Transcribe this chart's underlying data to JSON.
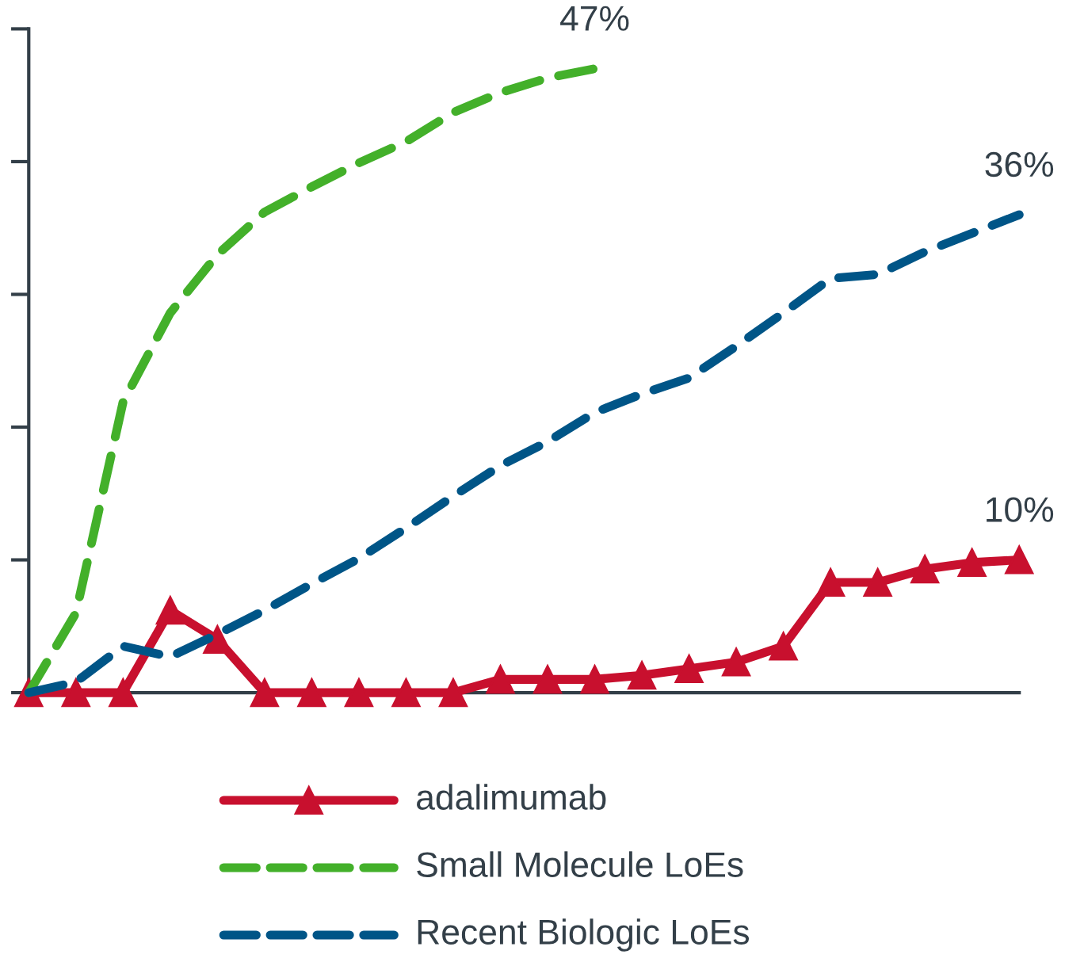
{
  "chart_data": {
    "type": "line",
    "categories": [
      null,
      null,
      null,
      null,
      null,
      null,
      null,
      null,
      null,
      null,
      null,
      null,
      null,
      null,
      null,
      null,
      null,
      null,
      null,
      null,
      null,
      null
    ],
    "series": [
      {
        "name": "adalimumab",
        "color": "#c8102e",
        "marker": "triangle",
        "line_style": "solid",
        "values": [
          0,
          0,
          0,
          6.2,
          4.0,
          0,
          0,
          0,
          0,
          0,
          1.0,
          1.0,
          1.0,
          1.3,
          1.8,
          2.3,
          3.5,
          8.3,
          8.3,
          9.3,
          9.8,
          10
        ],
        "value_labels": [
          null,
          null,
          null,
          null,
          null,
          null,
          null,
          null,
          null,
          null,
          null,
          null,
          null,
          null,
          null,
          null,
          null,
          null,
          null,
          null,
          null,
          "10%"
        ]
      },
      {
        "name": "Small Molecule LoEs",
        "color": "#43b02a",
        "marker": "none",
        "line_style": "dashed",
        "values": [
          0,
          6.0,
          21.9,
          28.6,
          33,
          36.2,
          38.1,
          39.9,
          41.5,
          43.7,
          45.2,
          46.3,
          47,
          null,
          null,
          null,
          null,
          null,
          null,
          null,
          null,
          null
        ],
        "value_labels": [
          null,
          null,
          null,
          null,
          null,
          null,
          null,
          null,
          null,
          null,
          null,
          null,
          "47%",
          null,
          null,
          null,
          null,
          null,
          null,
          null,
          null,
          null
        ]
      },
      {
        "name": "Recent Biologic LoEs",
        "color": "#005587",
        "marker": "none",
        "line_style": "dashed",
        "values": [
          0,
          0.8,
          3.5,
          2.7,
          4.4,
          6.2,
          8.2,
          10.1,
          12.4,
          14.8,
          17.1,
          18.9,
          21.1,
          22.5,
          23.7,
          26.1,
          28.6,
          31.2,
          31.5,
          33.2,
          34.6,
          36
        ],
        "value_labels": [
          null,
          null,
          null,
          null,
          null,
          null,
          null,
          null,
          null,
          null,
          null,
          null,
          null,
          null,
          null,
          null,
          null,
          null,
          null,
          null,
          null,
          "36%"
        ]
      }
    ],
    "ylim": [
      0,
      50
    ],
    "yticks": [
      {
        "value": 0,
        "label": null
      },
      {
        "value": 10,
        "label": null
      },
      {
        "value": 20,
        "label": null
      },
      {
        "value": 30,
        "label": null
      },
      {
        "value": 40,
        "label": null
      },
      {
        "value": 50,
        "label": null
      }
    ],
    "grid": false,
    "legend": "bottom"
  }
}
